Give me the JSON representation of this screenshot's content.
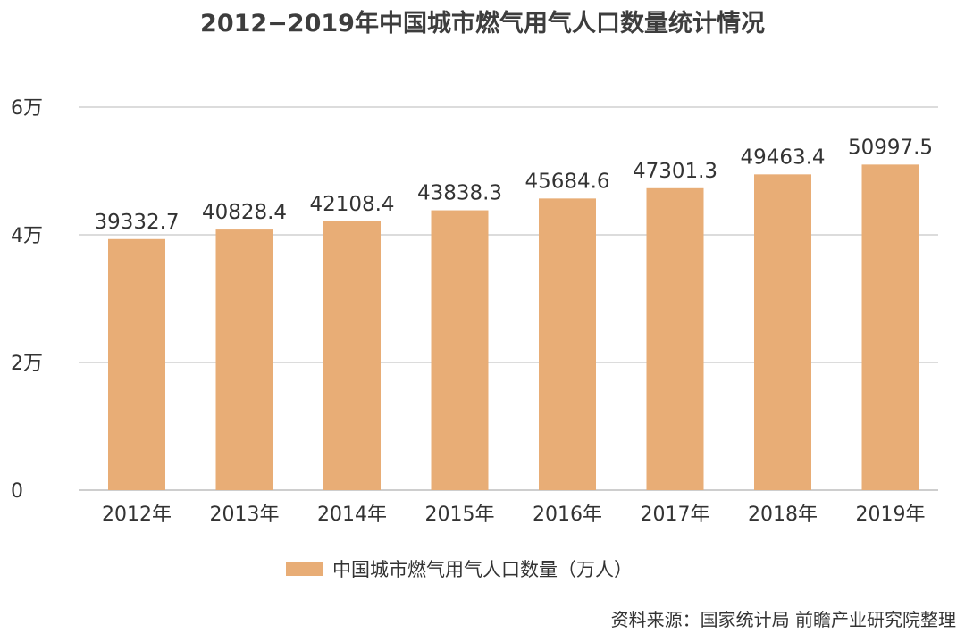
{
  "title": "2012−2019年中国城市燃气用气人口数量统计情况",
  "source": "资料来源：国家统计局  前瞻产业研究院整理",
  "colors": {
    "bar": "#E8AD76",
    "grid": "#c8c8c8",
    "axis": "#b0b0b0",
    "text": "#333333"
  },
  "chart_data": {
    "type": "bar",
    "categories": [
      "2012年",
      "2013年",
      "2014年",
      "2015年",
      "2016年",
      "2017年",
      "2018年",
      "2019年"
    ],
    "series": [
      {
        "name": "中国城市燃气用气人口数量（万人）",
        "values": [
          39332.7,
          40828.4,
          42108.4,
          43838.3,
          45684.6,
          47301.3,
          49463.4,
          50997.5
        ]
      }
    ],
    "data_labels": [
      "39332.7",
      "40828.4",
      "42108.4",
      "43838.3",
      "45684.6",
      "47301.3",
      "49463.4",
      "50997.5"
    ],
    "ylim": [
      0,
      60000
    ],
    "yticks": [
      0,
      20000,
      40000,
      60000
    ],
    "ytick_labels": [
      "0",
      "2万",
      "4万",
      "6万"
    ],
    "grid": true,
    "legend_position": "bottom"
  }
}
